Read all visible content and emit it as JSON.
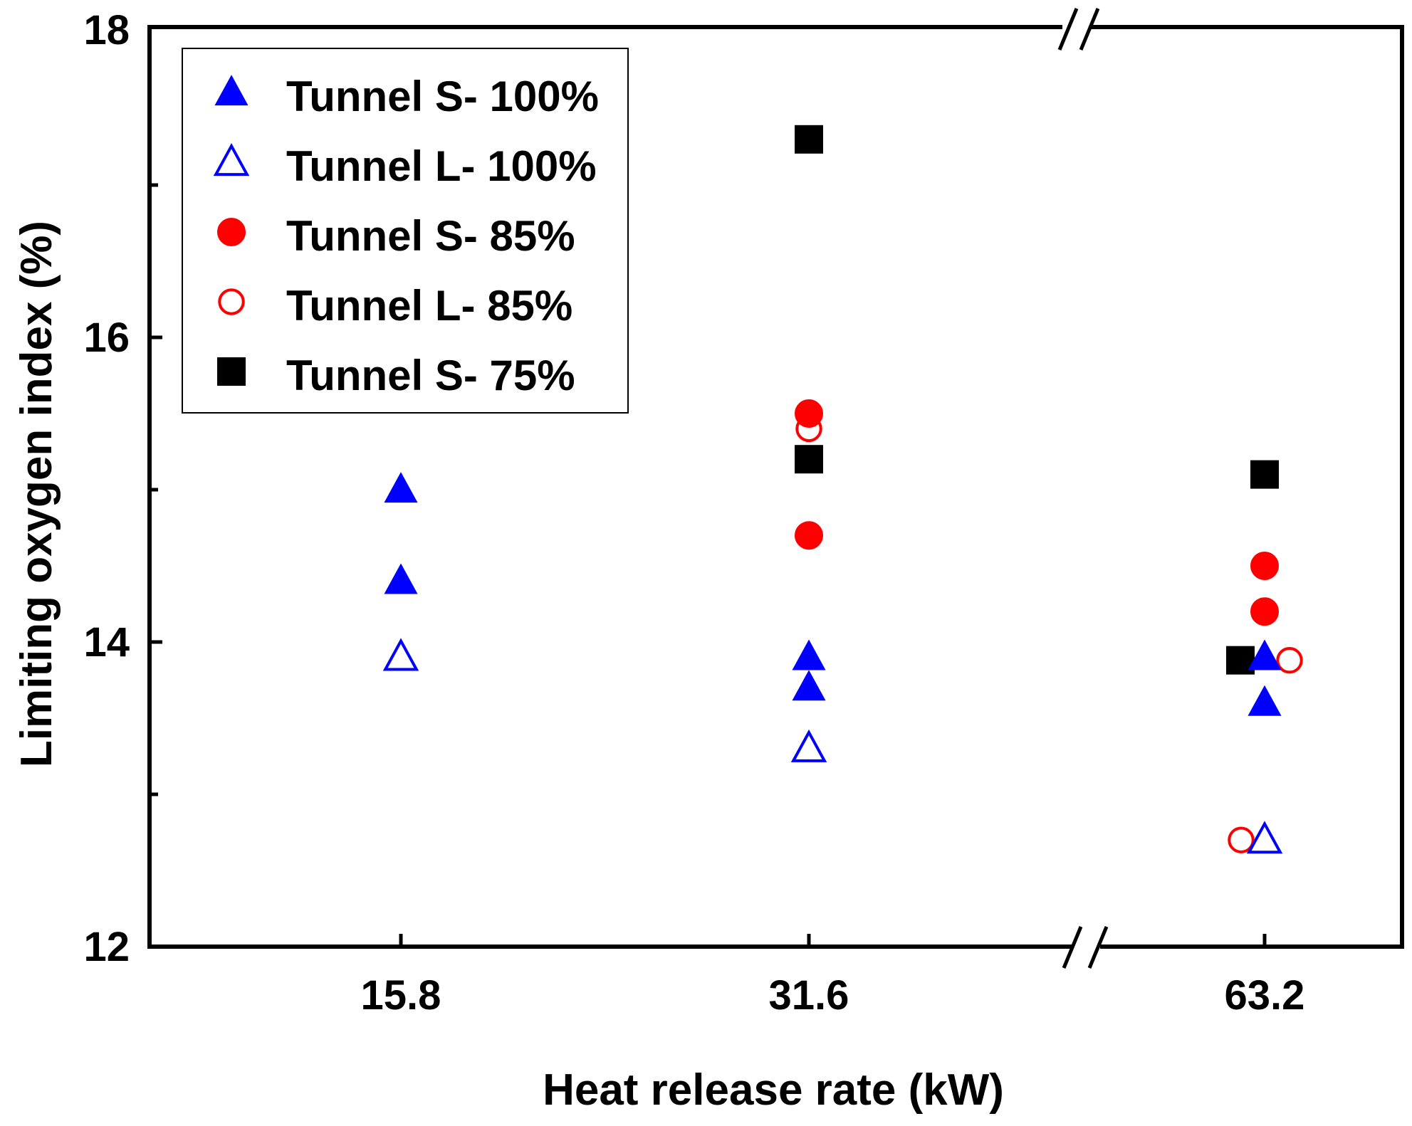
{
  "chart_data": {
    "type": "scatter",
    "xlabel": "Heat release rate (kW)",
    "ylabel": "Limiting oxygen index (%)",
    "ylim": [
      12,
      18
    ],
    "y_ticks": [
      "12",
      "14",
      "16",
      "18"
    ],
    "categories": [
      "15.8",
      "31.6",
      "63.2"
    ],
    "x_axis_break": "between 31.6 and 63.2",
    "grid": false,
    "legend_position": "top-left",
    "series": [
      {
        "name": "Tunnel S- 100%",
        "marker": "triangle-filled",
        "color": "#0000ff",
        "points": [
          {
            "x": "15.8",
            "y": 15.0
          },
          {
            "x": "15.8",
            "y": 14.4
          },
          {
            "x": "31.6",
            "y": 13.9
          },
          {
            "x": "31.6",
            "y": 13.7
          },
          {
            "x": "63.2",
            "y": 13.9
          },
          {
            "x": "63.2",
            "y": 13.6
          }
        ]
      },
      {
        "name": "Tunnel L- 100%",
        "marker": "triangle-open",
        "color": "#0000ff",
        "points": [
          {
            "x": "15.8",
            "y": 13.9
          },
          {
            "x": "31.6",
            "y": 13.3
          },
          {
            "x": "63.2",
            "y": 12.7
          }
        ]
      },
      {
        "name": "Tunnel S- 85%",
        "marker": "circle-filled",
        "color": "#ff0000",
        "points": [
          {
            "x": "31.6",
            "y": 15.5
          },
          {
            "x": "31.6",
            "y": 14.7
          },
          {
            "x": "63.2",
            "y": 14.5
          },
          {
            "x": "63.2",
            "y": 14.2
          }
        ]
      },
      {
        "name": "Tunnel L- 85%",
        "marker": "circle-open",
        "color": "#ff0000",
        "points": [
          {
            "x": "31.6",
            "y": 15.4
          },
          {
            "x": "63.2",
            "y": 13.88
          },
          {
            "x": "63.2",
            "y": 12.7
          }
        ]
      },
      {
        "name": "Tunnel S- 75%",
        "marker": "square-filled",
        "color": "#000000",
        "points": [
          {
            "x": "31.6",
            "y": 17.3
          },
          {
            "x": "31.6",
            "y": 15.2
          },
          {
            "x": "63.2",
            "y": 15.1
          },
          {
            "x": "63.2",
            "y": 13.88
          }
        ]
      }
    ]
  }
}
